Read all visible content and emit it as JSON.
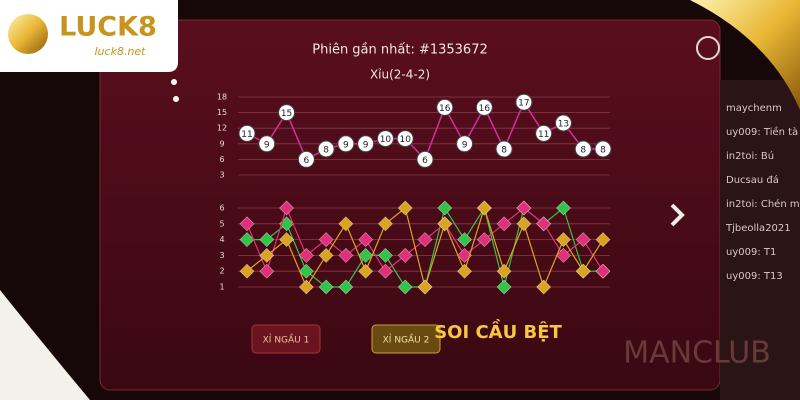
{
  "brand": {
    "name": "LUCK8",
    "url": "luck8.net"
  },
  "header": {
    "session": "Phiên gần nhất: #1353672",
    "result": "Xỉu(2-4-2)"
  },
  "totals_chart": {
    "type": "line",
    "ylim": [
      3,
      18
    ],
    "yticks": [
      3,
      6,
      9,
      12,
      15,
      18
    ],
    "color": "#d42fa0",
    "values": [
      11,
      9,
      15,
      6,
      8,
      9,
      9,
      10,
      10,
      6,
      16,
      9,
      16,
      8,
      17,
      11,
      13,
      8,
      8
    ]
  },
  "dice_chart": {
    "type": "line",
    "ylim": [
      1,
      6
    ],
    "yticks": [
      1,
      2,
      3,
      4,
      5,
      6
    ],
    "series": [
      {
        "color": "#31c34a",
        "values": [
          4,
          4,
          5,
          2,
          1,
          1,
          3,
          3,
          1,
          1,
          6,
          4,
          6,
          1,
          6,
          5,
          6,
          2,
          2
        ]
      },
      {
        "color": "#e0307a",
        "values": [
          5,
          2,
          6,
          3,
          4,
          3,
          4,
          2,
          3,
          4,
          5,
          3,
          4,
          5,
          6,
          5,
          3,
          4,
          2
        ]
      },
      {
        "color": "#d9a521",
        "values": [
          2,
          3,
          4,
          1,
          3,
          5,
          2,
          5,
          6,
          1,
          5,
          2,
          6,
          2,
          5,
          1,
          4,
          2,
          4
        ]
      }
    ]
  },
  "buttons": [
    "XỈ NGẦU 1",
    "XỈ NGẦU 2"
  ],
  "chat": [
    "maychenm",
    "uy009: Tiền tà",
    "in2toi: Bú",
    "Ducsau đá",
    "in2toi: Chén m",
    "Tjbeolla2021",
    "uy009: T1",
    "uy009: T13"
  ],
  "caption": "SOI CẦU BỆT",
  "watermark": "MANCLUB"
}
